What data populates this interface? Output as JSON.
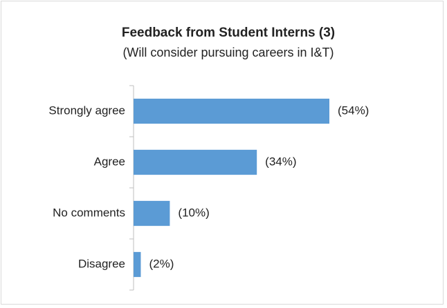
{
  "chart_data": {
    "type": "bar",
    "orientation": "horizontal",
    "title": "Feedback from Student Interns (3)",
    "subtitle": "(Will consider pursuing careers in I&T)",
    "categories": [
      "Strongly agree",
      "Agree",
      "No comments",
      "Disagree"
    ],
    "values": [
      54,
      34,
      10,
      2
    ],
    "value_labels": [
      "(54%)",
      "(34%)",
      "(10%)",
      "(2%)"
    ],
    "color": "#5b9bd5"
  }
}
